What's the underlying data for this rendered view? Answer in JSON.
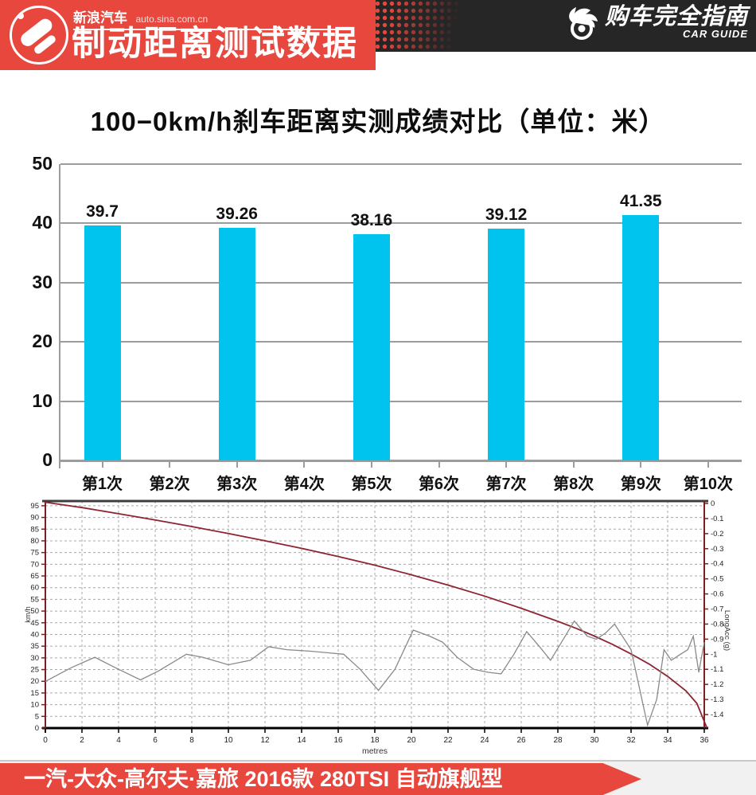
{
  "header": {
    "site_logo": "新浪汽车",
    "site_url": "auto.sina.com.cn",
    "banner_title": "制动距离测试数据",
    "brand_title": "购车完全指南",
    "brand_subtitle": "CAR GUIDE"
  },
  "footer": {
    "car_model": "一汽-大众-高尔夫·嘉旅 2016款 280TSI 自动旗舰型"
  },
  "colors": {
    "accent_red": "#e8473e",
    "dark_band": "#262626",
    "bar_cyan": "#00c4ee",
    "grid_gray": "#9c9c9c",
    "speed_line": "#8e2430",
    "acc_line": "#8a8a8a"
  },
  "chart_data": [
    {
      "type": "bar",
      "title": "100−0km/h刹车距离实测成绩对比（单位：米）",
      "categories": [
        "第1次",
        "第2次",
        "第3次",
        "第4次",
        "第5次",
        "第6次",
        "第7次",
        "第8次",
        "第9次",
        "第10次"
      ],
      "values": [
        39.7,
        null,
        39.26,
        null,
        38.16,
        null,
        39.12,
        null,
        41.35,
        null
      ],
      "value_labels": [
        "39.7",
        null,
        "39.26",
        null,
        "38.16",
        null,
        "39.12",
        null,
        "41.35",
        null
      ],
      "ylim": [
        0,
        50
      ],
      "yticks": [
        0,
        10,
        20,
        30,
        40,
        50
      ],
      "xlabel": "",
      "ylabel": "",
      "grid": true,
      "legend": false
    },
    {
      "type": "line",
      "xlabel": "metres",
      "ylabel_left": "km/h",
      "ylabel_right": "LongAcc (g)",
      "x_range": [
        0,
        36
      ],
      "xticks": [
        0,
        2,
        4,
        6,
        8,
        10,
        12,
        14,
        16,
        18,
        20,
        22,
        24,
        26,
        28,
        30,
        32,
        34,
        36
      ],
      "left_axis_max": 97,
      "left_ticks": [
        0,
        5,
        10,
        15,
        20,
        25,
        30,
        35,
        40,
        45,
        50,
        55,
        60,
        65,
        70,
        75,
        80,
        85,
        90,
        95
      ],
      "right_ticks": [
        0,
        -0.1,
        -0.2,
        -0.3,
        -0.4,
        -0.5,
        -0.6,
        -0.7,
        -0.8,
        -0.9,
        -1,
        -1.1,
        -1.2,
        -1.3,
        -1.4
      ],
      "grid": true,
      "legend": false,
      "series": [
        {
          "name": "speed-kmh",
          "axis": "left",
          "color": "#8e2430",
          "points": [
            [
              0,
              96.5
            ],
            [
              2,
              94.2
            ],
            [
              4,
              91.6
            ],
            [
              6,
              88.9
            ],
            [
              8,
              86.1
            ],
            [
              10,
              83.1
            ],
            [
              12,
              80.0
            ],
            [
              14,
              76.8
            ],
            [
              16,
              73.3
            ],
            [
              18,
              69.6
            ],
            [
              20,
              65.5
            ],
            [
              22,
              61.1
            ],
            [
              24,
              56.4
            ],
            [
              26,
              51.2
            ],
            [
              28,
              45.6
            ],
            [
              29,
              42.6
            ],
            [
              30,
              39.3
            ],
            [
              31,
              35.7
            ],
            [
              32,
              31.7
            ],
            [
              33,
              27.3
            ],
            [
              34,
              22.1
            ],
            [
              35,
              15.9
            ],
            [
              35.6,
              10.5
            ],
            [
              36.15,
              0
            ]
          ]
        },
        {
          "name": "longacc-g",
          "axis": "right",
          "color": "#8a8a8a",
          "points": [
            [
              0,
              -1.18
            ],
            [
              1.4,
              -1.09
            ],
            [
              2.7,
              -1.02
            ],
            [
              4,
              -1.1
            ],
            [
              5.2,
              -1.17
            ],
            [
              6.2,
              -1.11
            ],
            [
              7.7,
              -1.0
            ],
            [
              8.6,
              -1.02
            ],
            [
              10,
              -1.07
            ],
            [
              11.2,
              -1.04
            ],
            [
              12.2,
              -0.95
            ],
            [
              13.2,
              -0.97
            ],
            [
              14.5,
              -0.98
            ],
            [
              15.4,
              -0.99
            ],
            [
              16.3,
              -1.0
            ],
            [
              17.2,
              -1.1
            ],
            [
              18.2,
              -1.24
            ],
            [
              19.1,
              -1.1
            ],
            [
              20.1,
              -0.84
            ],
            [
              21,
              -0.88
            ],
            [
              21.7,
              -0.92
            ],
            [
              22.5,
              -1.02
            ],
            [
              23.4,
              -1.1
            ],
            [
              24.2,
              -1.12
            ],
            [
              24.9,
              -1.13
            ],
            [
              25.6,
              -1.0
            ],
            [
              26.3,
              -0.85
            ],
            [
              27,
              -0.95
            ],
            [
              27.6,
              -1.04
            ],
            [
              28.3,
              -0.9
            ],
            [
              28.9,
              -0.78
            ],
            [
              29.6,
              -0.88
            ],
            [
              30.1,
              -0.9
            ],
            [
              30.6,
              -0.86
            ],
            [
              31.1,
              -0.8
            ],
            [
              32,
              -0.97
            ],
            [
              32.9,
              -1.47
            ],
            [
              33.4,
              -1.3
            ],
            [
              33.8,
              -0.97
            ],
            [
              34.2,
              -1.04
            ],
            [
              34.7,
              -1.0
            ],
            [
              35.1,
              -0.97
            ],
            [
              35.4,
              -0.88
            ],
            [
              35.7,
              -1.12
            ],
            [
              36,
              -0.92
            ]
          ]
        }
      ]
    }
  ]
}
